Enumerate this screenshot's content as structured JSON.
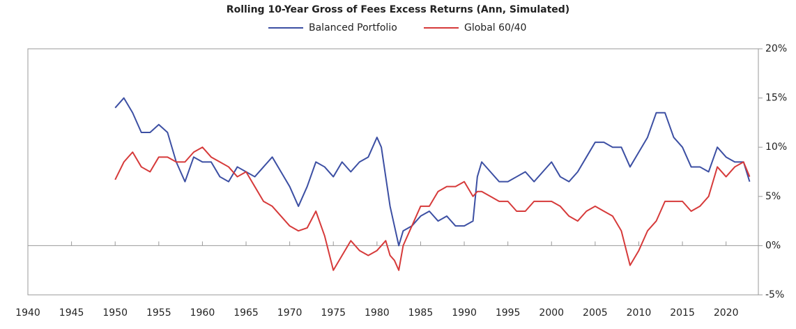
{
  "chart_data": {
    "type": "line",
    "title": "Rolling 10-Year Gross of Fees Excess Returns (Ann, Simulated)",
    "x": [
      1950,
      1951,
      1952,
      1953,
      1954,
      1955,
      1956,
      1957,
      1958,
      1959,
      1960,
      1961,
      1962,
      1963,
      1964,
      1965,
      1966,
      1967,
      1968,
      1969,
      1970,
      1971,
      1972,
      1973,
      1974,
      1975,
      1976,
      1977,
      1978,
      1979,
      1980,
      1980.5,
      1981,
      1981.5,
      1982,
      1982.5,
      1983,
      1984,
      1985,
      1986,
      1987,
      1988,
      1989,
      1990,
      1991,
      1991.5,
      1992,
      1993,
      1994,
      1995,
      1996,
      1997,
      1998,
      1999,
      2000,
      2001,
      2002,
      2003,
      2004,
      2005,
      2006,
      2007,
      2008,
      2009,
      2010,
      2011,
      2012,
      2013,
      2014,
      2015,
      2016,
      2017,
      2018,
      2019,
      2020,
      2021,
      2022,
      2022.7
    ],
    "series": [
      {
        "name": "Balanced Portfolio",
        "color": "#3c4fa3",
        "values": [
          14,
          15,
          13.5,
          11.5,
          11.5,
          12.3,
          11.5,
          8.5,
          6.5,
          9,
          8.5,
          8.5,
          7,
          6.5,
          8,
          7.5,
          7,
          8,
          9,
          7.5,
          6,
          4,
          6,
          8.5,
          8,
          7,
          8.5,
          7.5,
          8.5,
          9,
          11,
          10,
          7,
          4,
          2,
          0,
          1.5,
          2,
          3,
          3.5,
          2.5,
          3,
          2,
          2,
          2.5,
          7,
          8.5,
          7.5,
          6.5,
          6.5,
          7,
          7.5,
          6.5,
          7.5,
          8.5,
          7,
          6.5,
          7.5,
          9,
          10.5,
          10.5,
          10,
          10,
          8,
          9.5,
          11,
          13.5,
          13.5,
          11,
          10,
          8,
          8,
          7.5,
          10,
          9,
          8.5,
          8.5,
          6.5
        ]
      },
      {
        "name": "Global 60/40",
        "color": "#d63a3a",
        "values": [
          6.7,
          8.5,
          9.5,
          8,
          7.5,
          9,
          9,
          8.5,
          8.5,
          9.5,
          10,
          9,
          8.5,
          8,
          7,
          7.5,
          6,
          4.5,
          4,
          3,
          2,
          1.5,
          1.8,
          3.5,
          1,
          -2.5,
          -1,
          0.5,
          -0.5,
          -1,
          -0.5,
          0,
          0.5,
          -1,
          -1.5,
          -2.5,
          0,
          2,
          4,
          4,
          5.5,
          6,
          6,
          6.5,
          5,
          5.5,
          5.5,
          5,
          4.5,
          4.5,
          3.5,
          3.5,
          4.5,
          4.5,
          4.5,
          4,
          3,
          2.5,
          3.5,
          4,
          3.5,
          3,
          1.5,
          -2,
          -0.5,
          1.5,
          2.5,
          4.5,
          4.5,
          4.5,
          3.5,
          4,
          5,
          8,
          7,
          8,
          8.5,
          7
        ]
      }
    ],
    "xlim": [
      1940,
      2023.7
    ],
    "xticks": [
      1940,
      1945,
      1950,
      1955,
      1960,
      1965,
      1970,
      1975,
      1980,
      1985,
      1990,
      1995,
      2000,
      2005,
      2010,
      2015,
      2020
    ],
    "ylim": [
      -5,
      20
    ],
    "yticks": [
      {
        "value": -5,
        "label": "-5%"
      },
      {
        "value": 0,
        "label": "0%"
      },
      {
        "value": 5,
        "label": "5%"
      },
      {
        "value": 10,
        "label": "10%"
      },
      {
        "value": 15,
        "label": "15%"
      },
      {
        "value": 20,
        "label": "20%"
      }
    ]
  }
}
